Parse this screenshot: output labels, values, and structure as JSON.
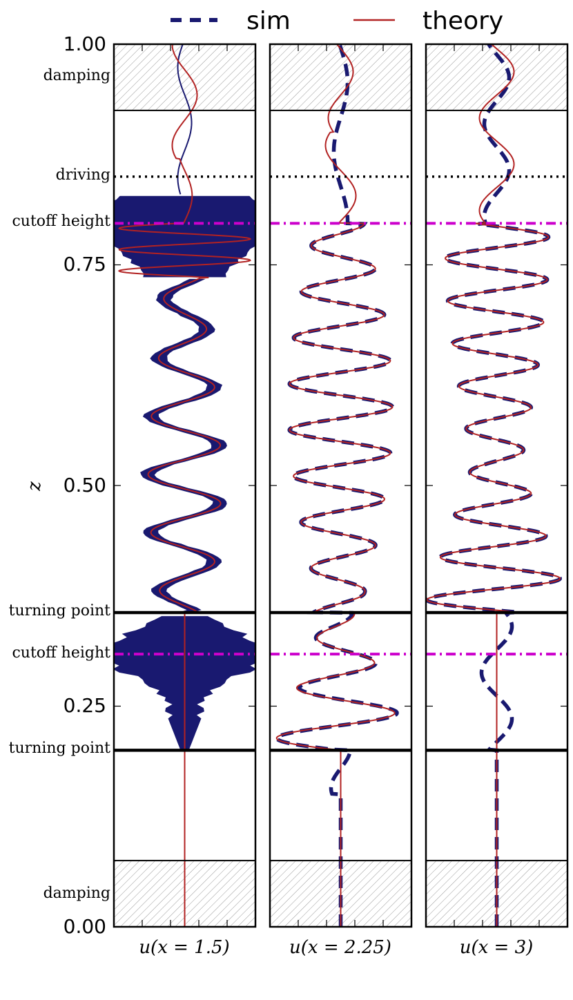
{
  "legend": {
    "items": [
      {
        "label": "sim",
        "color": "#191970",
        "style": "dashed"
      },
      {
        "label": "theory",
        "color": "#b22222",
        "style": "solid"
      }
    ],
    "placement": "top-center"
  },
  "y_axis": {
    "label": "z",
    "ticks": [
      "1.00",
      "0.75",
      "0.50",
      "0.25",
      "0.00"
    ]
  },
  "region_labels": {
    "damping_top": "damping",
    "driving": "driving",
    "cutoff_upper": "cutoff height",
    "turning_upper": "turning point",
    "cutoff_lower": "cutoff height",
    "turning_lower": "turning point",
    "damping_bottom": "damping"
  },
  "panels": [
    {
      "xlabel": "u(x = 1.5)"
    },
    {
      "xlabel": "u(x = 2.25)"
    },
    {
      "xlabel": "u(x = 3)"
    }
  ],
  "colors": {
    "sim": "#191970",
    "theory": "#b22222",
    "cutoff_line": "#cc00cc",
    "boundary": "#000000",
    "hatch": "#999999"
  },
  "chart_data": {
    "type": "line",
    "ylim": [
      0,
      1
    ],
    "ylabel": "z",
    "grid": false,
    "horizontal_markers": {
      "damping_top_start": 0.925,
      "driving": 0.85,
      "upper_cutoff": 0.797,
      "upper_turning": 0.356,
      "lower_cutoff": 0.309,
      "lower_turning": 0.2,
      "damping_bottom_end": 0.075
    },
    "series": [
      {
        "name": "sim",
        "style": "dashed"
      },
      {
        "name": "theory",
        "style": "solid"
      }
    ]
  }
}
